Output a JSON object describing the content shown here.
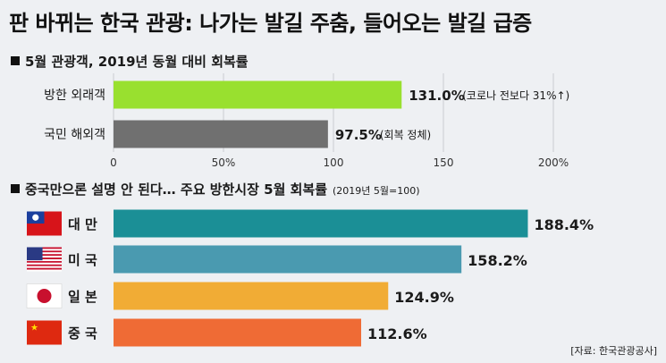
{
  "title": "판 바뀌는 한국 관광: 나가는 발길 주춤, 들어오는 발길 급증",
  "source": "[자료: 한국관광공사]",
  "chart_data": [
    {
      "type": "bar",
      "orientation": "horizontal",
      "title": "5월 관광객, 2019년 동월 대비 회복률",
      "categories": [
        "방한 외래객",
        "국민 해외객"
      ],
      "values": [
        131.0,
        97.5
      ],
      "value_labels": [
        "131.0%",
        "97.5%"
      ],
      "annotations": [
        "(코로나 전보다 31%↑)",
        "(회복 정체)"
      ],
      "colors": [
        "#99e02f",
        "#707070"
      ],
      "xlim": [
        0,
        200
      ],
      "xticks": [
        0,
        50,
        100,
        150,
        200
      ],
      "xtick_labels": [
        "0",
        "50%",
        "100",
        "150",
        "200%"
      ],
      "grid": true
    },
    {
      "type": "bar",
      "orientation": "horizontal",
      "title": "중국만으론 설명 안 된다… 주요 방한시장 5월 회복률",
      "note": "(2019년 5월=100)",
      "categories": [
        "대 만",
        "미 국",
        "일 본",
        "중 국"
      ],
      "values": [
        188.4,
        158.2,
        124.9,
        112.6
      ],
      "value_labels": [
        "188.4%",
        "158.2%",
        "124.9%",
        "112.6%"
      ],
      "flags": [
        "taiwan-flag",
        "usa-flag",
        "japan-flag",
        "china-flag"
      ],
      "colors": [
        "#1b8f96",
        "#4a9ab0",
        "#f1ac35",
        "#ef6b35"
      ],
      "xlim": [
        0,
        200
      ]
    }
  ]
}
